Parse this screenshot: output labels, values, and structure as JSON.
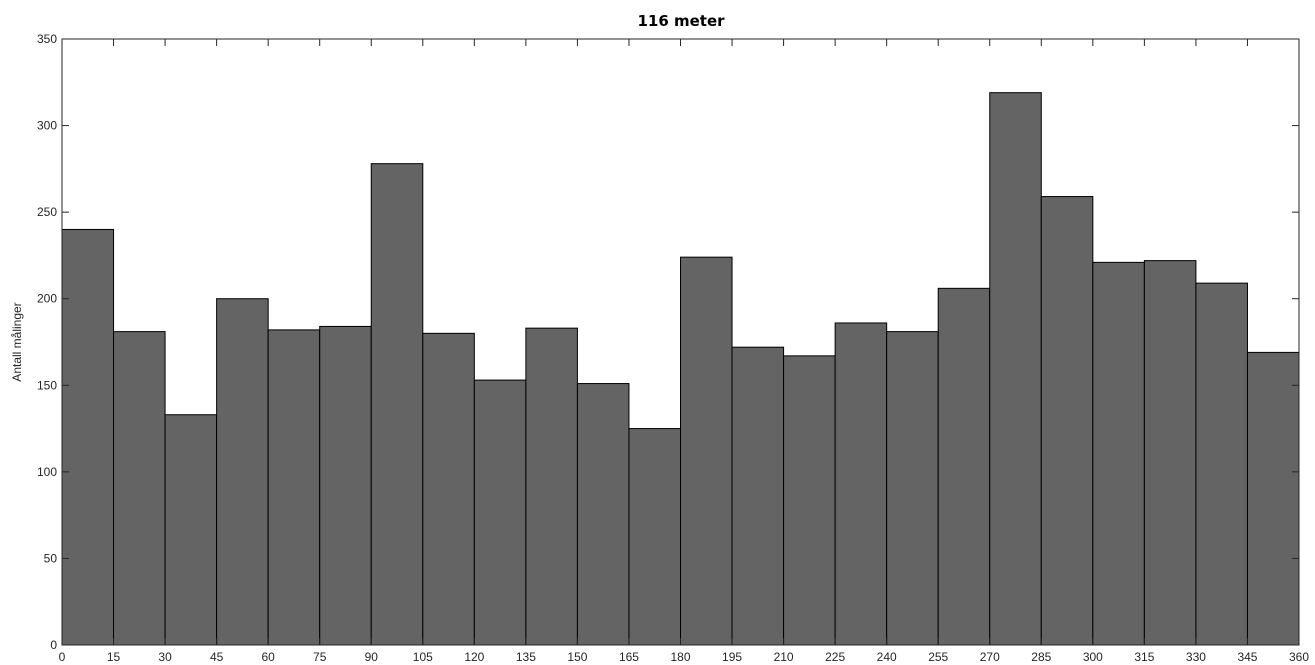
{
  "chart_data": {
    "type": "bar",
    "title": "116 meter",
    "xlabel": "",
    "ylabel": "Antall målinger",
    "bin_edges": [
      0,
      15,
      30,
      45,
      60,
      75,
      90,
      105,
      120,
      135,
      150,
      165,
      180,
      195,
      210,
      225,
      240,
      255,
      270,
      285,
      300,
      315,
      330,
      345,
      360
    ],
    "values": [
      240,
      181,
      133,
      200,
      182,
      184,
      278,
      180,
      153,
      183,
      151,
      125,
      224,
      172,
      167,
      186,
      181,
      206,
      319,
      259,
      221,
      222,
      209,
      169
    ],
    "xlim": [
      0,
      360
    ],
    "ylim": [
      0,
      350
    ],
    "xticks": [
      "0",
      "15",
      "30",
      "45",
      "60",
      "75",
      "90",
      "105",
      "120",
      "135",
      "150",
      "165",
      "180",
      "195",
      "210",
      "225",
      "240",
      "255",
      "270",
      "285",
      "300",
      "315",
      "330",
      "345",
      "360"
    ],
    "yticks": [
      "0",
      "50",
      "100",
      "150",
      "200",
      "250",
      "300",
      "350"
    ],
    "grid": false,
    "bar_color": "#646464",
    "edge_color": "#000000",
    "axis_color": "#262626"
  }
}
